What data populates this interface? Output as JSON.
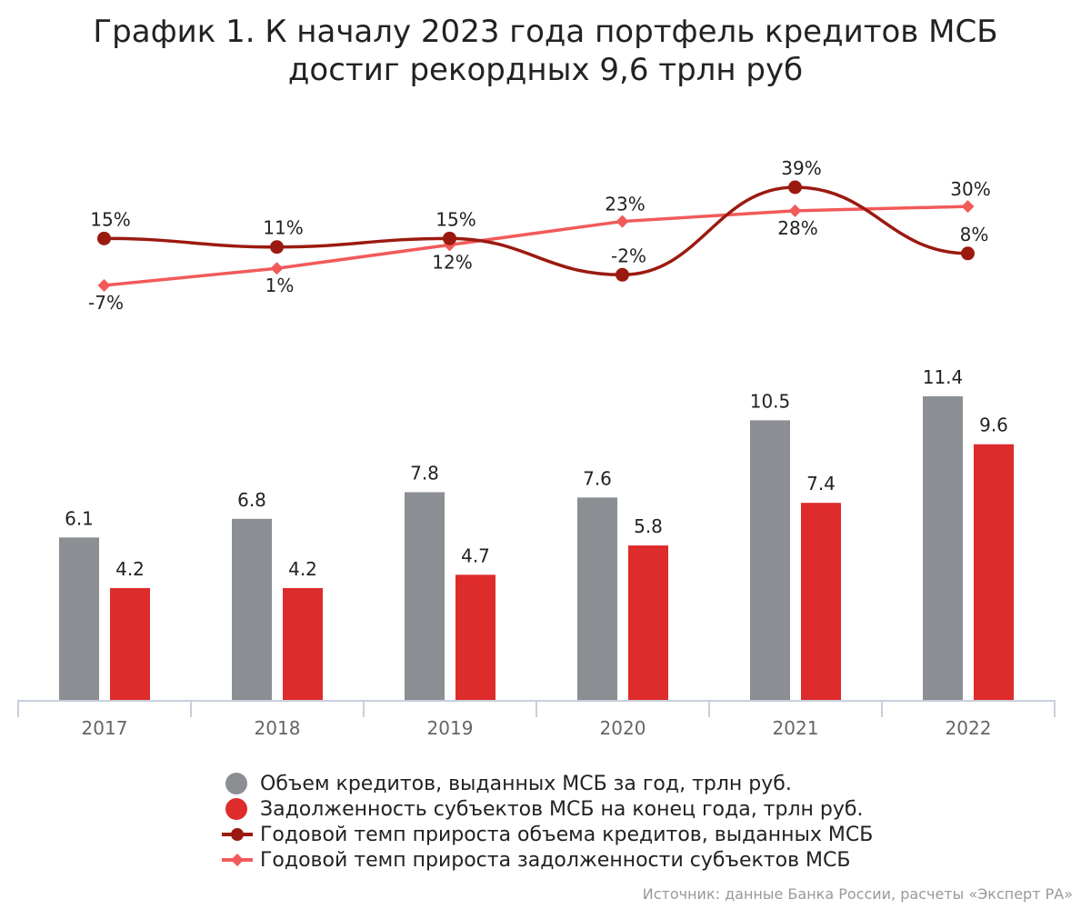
{
  "title_lines": [
    "График 1. К началу 2023 года портфель кредитов МСБ",
    "достиг рекордных 9,6 трлн руб"
  ],
  "source": "Источник: данные Банка России, расчеты «Эксперт РА»",
  "colors": {
    "issued_bar": "#8b8f93",
    "debt_bar": "#de2b2c",
    "issued_growth_line": "#9b1a10",
    "debt_growth_line": "#f25a5a",
    "axis": "#c8d0dc",
    "tick_label": "#666666"
  },
  "chart_data": [
    {
      "type": "bar",
      "categories": [
        "2017",
        "2018",
        "2019",
        "2020",
        "2021",
        "2022"
      ],
      "series": [
        {
          "name": "Объем кредитов, выданных МСБ за год, трлн руб.",
          "values": [
            6.1,
            6.8,
            7.8,
            7.6,
            10.5,
            11.4
          ],
          "data_labels": [
            "6.1",
            "6.8",
            "7.8",
            "7.6",
            "10.5",
            "11.4"
          ]
        },
        {
          "name": "Задолженность субъектов МСБ на конец года, трлн руб.",
          "values": [
            4.2,
            4.2,
            4.7,
            5.8,
            7.4,
            9.6
          ],
          "data_labels": [
            "4.2",
            "4.2",
            "4.7",
            "5.8",
            "7.4",
            "9.6"
          ]
        }
      ],
      "ylim": [
        0,
        11.4
      ],
      "grid": false
    },
    {
      "type": "line",
      "categories": [
        "2017",
        "2018",
        "2019",
        "2020",
        "2021",
        "2022"
      ],
      "series": [
        {
          "name": "Годовой темп прироста объема кредитов, выданных МСБ",
          "values": [
            15,
            11,
            15,
            -2,
            39,
            8
          ],
          "data_labels": [
            "15%",
            "11%",
            "15%",
            "-2%",
            "39%",
            "8%"
          ],
          "marker": "circle",
          "smooth": true
        },
        {
          "name": "Годовой темп прироста задолженности субъектов МСБ",
          "values": [
            -7,
            1,
            12,
            23,
            28,
            30
          ],
          "data_labels": [
            "-7%",
            "1%",
            "12%",
            "23%",
            "28%",
            "30%"
          ],
          "marker": "diamond"
        }
      ],
      "ylim": [
        -7,
        39
      ],
      "grid": false
    }
  ],
  "legend_placement": "bottom"
}
